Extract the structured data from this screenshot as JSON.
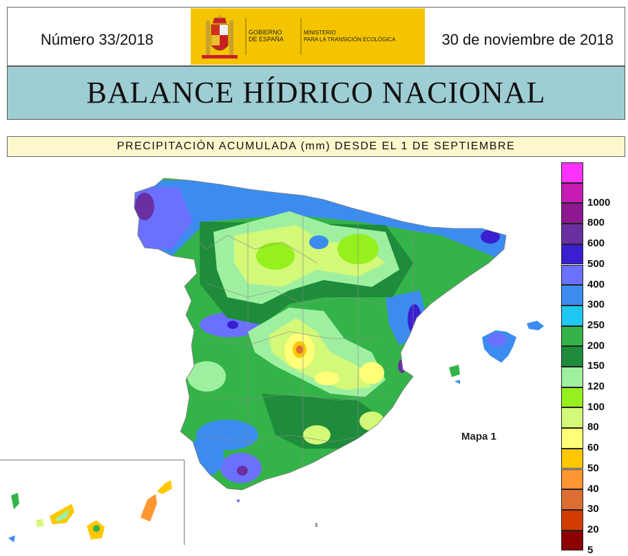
{
  "header": {
    "issue": "Número 33/2018",
    "date": "30 de noviembre de 2018",
    "logo": {
      "line1": "GOBIERNO",
      "line2": "DE ESPAÑA",
      "ministry1": "MINISTERIO",
      "ministry2": "PARA LA TRANSICIÓN ECOLÓGICA",
      "color": "#f4c400"
    }
  },
  "title": "BALANCE HÍDRICO NACIONAL",
  "subtitle": "PRECIPITACIÓN ACUMULADA (mm) DESDE EL 1 DE SEPTIEMBRE",
  "map_label": "Mapa 1",
  "legend": {
    "items": [
      {
        "label": "",
        "color": "#ff33ff"
      },
      {
        "label": "1000",
        "color": "#c81ab4"
      },
      {
        "label": "800",
        "color": "#8e1890"
      },
      {
        "label": "600",
        "color": "#6a2fa0"
      },
      {
        "label": "500",
        "color": "#3a1fd0"
      },
      {
        "label": "400",
        "color": "#6a70ff"
      },
      {
        "label": "300",
        "color": "#3c8cf0"
      },
      {
        "label": "250",
        "color": "#1ec8f0"
      },
      {
        "label": "200",
        "color": "#34b448"
      },
      {
        "label": "150",
        "color": "#1e8c3a"
      },
      {
        "label": "120",
        "color": "#9ef0a0"
      },
      {
        "label": "100",
        "color": "#96f01e"
      },
      {
        "label": "80",
        "color": "#d4f878"
      },
      {
        "label": "60",
        "color": "#ffff78"
      },
      {
        "label": "50",
        "color": "#ffc800"
      },
      {
        "label": "40",
        "color": "#ff9632"
      },
      {
        "label": "30",
        "color": "#dc6e32"
      },
      {
        "label": "20",
        "color": "#d23c00"
      },
      {
        "label": "5",
        "color": "#8c0000"
      }
    ]
  }
}
